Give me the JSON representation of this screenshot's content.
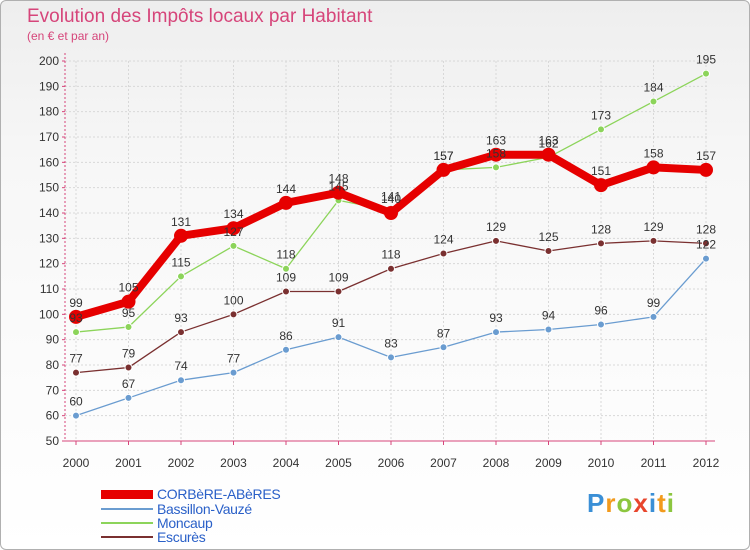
{
  "chart_data": {
    "type": "line",
    "title": "Evolution des Impôts locaux par Habitant",
    "subtitle": "(en € et par an)",
    "xlabel": "",
    "ylabel": "",
    "categories": [
      "2000",
      "2001",
      "2002",
      "2003",
      "2004",
      "2005",
      "2006",
      "2007",
      "2008",
      "2009",
      "2010",
      "2011",
      "2012"
    ],
    "ylim": [
      50,
      200
    ],
    "yticks": [
      "50",
      "60",
      "70",
      "80",
      "90",
      "100",
      "110",
      "120",
      "130",
      "140",
      "150",
      "160",
      "170",
      "180",
      "190",
      "200"
    ],
    "grid": true,
    "legend_position": "bottom-left",
    "series": [
      {
        "name": "CORBèRE-ABèRES",
        "color": "#e60000",
        "values": [
          99,
          105,
          131,
          134,
          144,
          148,
          140,
          157,
          163,
          163,
          151,
          158,
          157
        ]
      },
      {
        "name": "Bassillon-Vauzé",
        "color": "#6a9cd0",
        "values": [
          60,
          67,
          74,
          77,
          86,
          91,
          83,
          87,
          93,
          94,
          96,
          99,
          122
        ]
      },
      {
        "name": "Moncaup",
        "color": "#8cd45a",
        "values": [
          93,
          95,
          115,
          127,
          118,
          145,
          141,
          157,
          158,
          162,
          173,
          184,
          195
        ]
      },
      {
        "name": "Escurès",
        "color": "#7a3030",
        "values": [
          77,
          79,
          93,
          100,
          109,
          109,
          118,
          124,
          129,
          125,
          128,
          129,
          128
        ]
      }
    ]
  },
  "brand": {
    "logo_letters": [
      "P",
      "r",
      "o",
      "x",
      "i",
      "t",
      "i"
    ]
  }
}
